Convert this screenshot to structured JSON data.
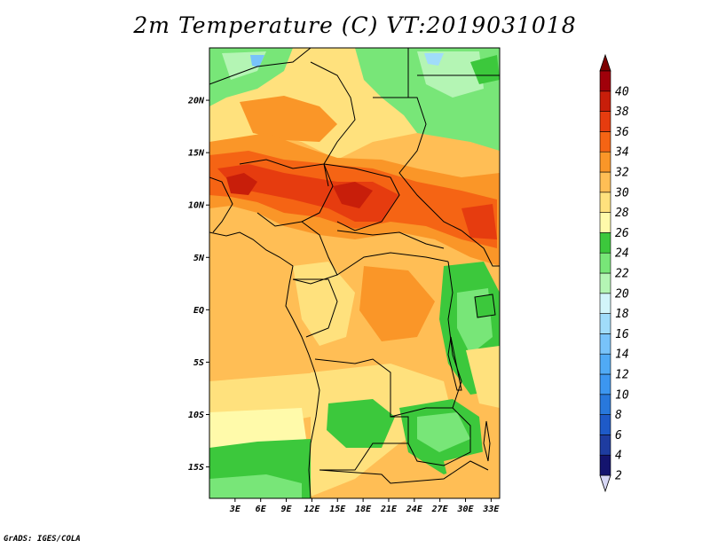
{
  "title": "2m Temperature (C) VT:2019031018",
  "credit": "GrADS: IGES/COLA",
  "map": {
    "lon_range": [
      0,
      34
    ],
    "lat_range": [
      -18,
      25
    ],
    "lat_ticks": [
      {
        "value": 20,
        "label": "20N"
      },
      {
        "value": 15,
        "label": "15N"
      },
      {
        "value": 10,
        "label": "10N"
      },
      {
        "value": 5,
        "label": "5N"
      },
      {
        "value": 0,
        "label": "EQ"
      },
      {
        "value": -5,
        "label": "5S"
      },
      {
        "value": -10,
        "label": "10S"
      },
      {
        "value": -15,
        "label": "15S"
      }
    ],
    "lon_ticks": [
      {
        "value": 3,
        "label": "3E"
      },
      {
        "value": 6,
        "label": "6E"
      },
      {
        "value": 9,
        "label": "9E"
      },
      {
        "value": 12,
        "label": "12E"
      },
      {
        "value": 15,
        "label": "15E"
      },
      {
        "value": 18,
        "label": "18E"
      },
      {
        "value": 21,
        "label": "21E"
      },
      {
        "value": 24,
        "label": "24E"
      },
      {
        "value": 27,
        "label": "27E"
      },
      {
        "value": 30,
        "label": "30E"
      },
      {
        "value": 33,
        "label": "33E"
      }
    ]
  },
  "colorbar": {
    "levels": [
      {
        "label": "2",
        "color": "#14146e"
      },
      {
        "label": "4",
        "color": "#1e3ca0"
      },
      {
        "label": "6",
        "color": "#1e5ac8"
      },
      {
        "label": "8",
        "color": "#2878dc"
      },
      {
        "label": "10",
        "color": "#3c96f0"
      },
      {
        "label": "12",
        "color": "#50aaf5"
      },
      {
        "label": "14",
        "color": "#78c3fa"
      },
      {
        "label": "16",
        "color": "#a0dcfa"
      },
      {
        "label": "18",
        "color": "#d2f5fa"
      },
      {
        "label": "20",
        "color": "#b4f5b4"
      },
      {
        "label": "22",
        "color": "#78e678"
      },
      {
        "label": "24",
        "color": "#3cc83c"
      },
      {
        "label": "26",
        "color": "#fffaaa"
      },
      {
        "label": "28",
        "color": "#ffe17d"
      },
      {
        "label": "30",
        "color": "#ffbe55"
      },
      {
        "label": "32",
        "color": "#fa9628"
      },
      {
        "label": "34",
        "color": "#f56414"
      },
      {
        "label": "36",
        "color": "#e63c0f"
      },
      {
        "label": "38",
        "color": "#c81e0a"
      },
      {
        "label": "40",
        "color": "#a0000a"
      }
    ],
    "under_color": "#d7d7f5",
    "over_color": "#7d0000"
  }
}
